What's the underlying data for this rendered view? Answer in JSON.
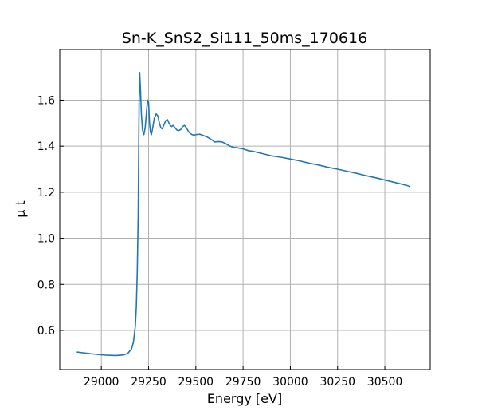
{
  "chart_data": {
    "type": "line",
    "title": "Sn-K_SnS2_Si111_50ms_170616",
    "xlabel": "Energy [eV]",
    "ylabel": "μ t",
    "xlim": [
      28780,
      30740
    ],
    "ylim": [
      0.43,
      1.82
    ],
    "grid": true,
    "line_color": "#1f77b4",
    "xticks": [
      29000,
      29250,
      29500,
      29750,
      30000,
      30250,
      30500
    ],
    "xtick_labels": [
      "29000",
      "29250",
      "29500",
      "29750",
      "30000",
      "30250",
      "30500"
    ],
    "yticks": [
      0.6,
      0.8,
      1.0,
      1.2,
      1.4,
      1.6
    ],
    "ytick_labels": [
      "0.6",
      "0.8",
      "1.0",
      "1.2",
      "1.4",
      "1.6"
    ],
    "series": [
      {
        "x": [
          28870,
          28950,
          29030,
          29080,
          29120,
          29140,
          29160,
          29170,
          29180,
          29185,
          29190,
          29195,
          29198,
          29200,
          29203,
          29207,
          29212,
          29218,
          29225,
          29232,
          29240,
          29245,
          29250,
          29255,
          29260,
          29265,
          29272,
          29280,
          29290,
          29300,
          29307,
          29315,
          29322,
          29330,
          29340,
          29350,
          29358,
          29365,
          29372,
          29380,
          29390,
          29400,
          29410,
          29420,
          29430,
          29440,
          29450,
          29460,
          29470,
          29480,
          29490,
          29500,
          29520,
          29540,
          29560,
          29580,
          29600,
          29620,
          29640,
          29660,
          29680,
          29700,
          29720,
          29750,
          29780,
          29800,
          29850,
          29900,
          29950,
          30000,
          30050,
          30100,
          30150,
          30200,
          30250,
          30300,
          30350,
          30400,
          30450,
          30500,
          30550,
          30600,
          30635
        ],
        "y": [
          0.506,
          0.498,
          0.492,
          0.491,
          0.494,
          0.5,
          0.52,
          0.55,
          0.62,
          0.7,
          0.85,
          1.1,
          1.4,
          1.6,
          1.72,
          1.65,
          1.54,
          1.47,
          1.45,
          1.48,
          1.56,
          1.6,
          1.59,
          1.5,
          1.46,
          1.45,
          1.48,
          1.52,
          1.54,
          1.53,
          1.5,
          1.48,
          1.475,
          1.49,
          1.51,
          1.515,
          1.5,
          1.49,
          1.485,
          1.49,
          1.48,
          1.47,
          1.468,
          1.472,
          1.485,
          1.49,
          1.48,
          1.465,
          1.455,
          1.45,
          1.448,
          1.45,
          1.452,
          1.446,
          1.44,
          1.43,
          1.418,
          1.42,
          1.418,
          1.41,
          1.4,
          1.395,
          1.393,
          1.388,
          1.38,
          1.378,
          1.368,
          1.358,
          1.352,
          1.344,
          1.336,
          1.326,
          1.318,
          1.308,
          1.3,
          1.291,
          1.282,
          1.272,
          1.263,
          1.253,
          1.243,
          1.233,
          1.225
        ]
      }
    ]
  }
}
